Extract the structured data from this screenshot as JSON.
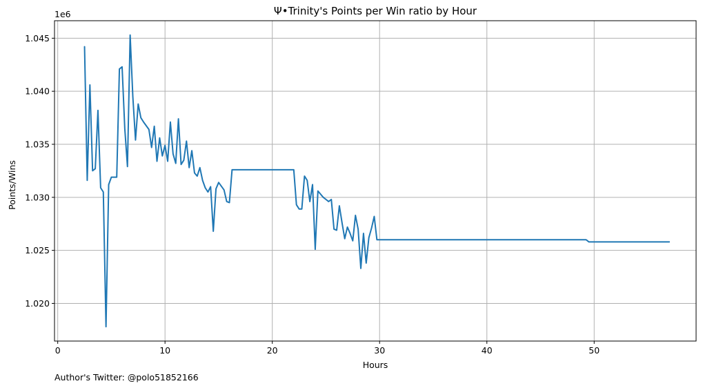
{
  "chart_data": {
    "type": "line",
    "title": "Ψ•Trinity's Points per Win ratio by Hour",
    "xlabel": "Hours",
    "ylabel": "Points/Wins",
    "y_offset_label": "1e6",
    "xlim": [
      -0.3,
      59.5
    ],
    "ylim": [
      1.01645,
      1.04665
    ],
    "x_ticks": [
      0,
      10,
      20,
      30,
      40,
      50
    ],
    "x_tick_labels": [
      "0",
      "10",
      "20",
      "30",
      "40",
      "50"
    ],
    "y_ticks": [
      1.02,
      1.025,
      1.03,
      1.035,
      1.04,
      1.045
    ],
    "y_tick_labels": [
      "1.020",
      "1.025",
      "1.030",
      "1.035",
      "1.040",
      "1.045"
    ],
    "grid": true,
    "series": [
      {
        "color": "#1f77b4",
        "x": [
          2.5,
          2.75,
          3.0,
          3.25,
          3.5,
          3.75,
          4.0,
          4.25,
          4.5,
          4.75,
          5.0,
          5.5,
          5.75,
          6.0,
          6.25,
          6.5,
          6.75,
          7.0,
          7.25,
          7.5,
          7.75,
          8.0,
          8.5,
          8.75,
          9.0,
          9.25,
          9.5,
          9.75,
          10.0,
          10.25,
          10.5,
          10.75,
          11.0,
          11.25,
          11.5,
          11.75,
          12.0,
          12.25,
          12.5,
          12.75,
          13.0,
          13.25,
          13.5,
          13.75,
          14.0,
          14.25,
          14.5,
          14.75,
          15.0,
          15.5,
          15.75,
          16.0,
          16.25,
          22.0,
          22.25,
          22.5,
          22.75,
          23.0,
          23.25,
          23.5,
          23.75,
          24.0,
          24.25,
          24.5,
          24.75,
          25.0,
          25.25,
          25.5,
          25.75,
          26.0,
          26.25,
          26.5,
          26.75,
          27.0,
          27.25,
          27.5,
          27.75,
          28.0,
          28.25,
          28.5,
          28.75,
          29.0,
          29.25,
          29.5,
          29.75,
          30.0,
          49.25,
          49.5,
          57.0
        ],
        "y": [
          1.0442,
          1.0316,
          1.0406,
          1.0325,
          1.0327,
          1.0382,
          1.0309,
          1.0305,
          1.0178,
          1.0312,
          1.0319,
          1.0319,
          1.0421,
          1.0423,
          1.0365,
          1.0329,
          1.0453,
          1.0395,
          1.0354,
          1.0388,
          1.0375,
          1.0371,
          1.0364,
          1.0347,
          1.0367,
          1.0334,
          1.0356,
          1.0339,
          1.0349,
          1.0334,
          1.0371,
          1.0341,
          1.0332,
          1.0374,
          1.0331,
          1.0335,
          1.0353,
          1.0328,
          1.0344,
          1.0323,
          1.032,
          1.0328,
          1.0316,
          1.0309,
          1.0305,
          1.031,
          1.0268,
          1.0308,
          1.0314,
          1.0307,
          1.0296,
          1.0295,
          1.0326,
          1.0326,
          1.0293,
          1.0289,
          1.0289,
          1.032,
          1.0316,
          1.0296,
          1.0312,
          1.0251,
          1.0306,
          1.0303,
          1.03,
          1.0298,
          1.0296,
          1.0298,
          1.027,
          1.0269,
          1.0292,
          1.0276,
          1.0261,
          1.0272,
          1.0266,
          1.0259,
          1.0283,
          1.027,
          1.0233,
          1.0266,
          1.0238,
          1.0262,
          1.0271,
          1.0282,
          1.026,
          1.026,
          1.026,
          1.0258,
          1.0258
        ]
      }
    ]
  },
  "footer": {
    "author_note": "Author's Twitter: @polo51852166"
  }
}
